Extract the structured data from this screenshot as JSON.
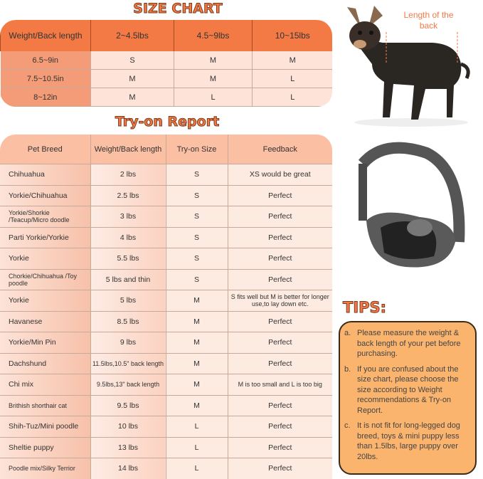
{
  "size_chart": {
    "title": "SIZE CHART",
    "header": [
      "Weight/Back length",
      "2~4.5lbs",
      "4.5~9lbs",
      "10~15lbs"
    ],
    "rows": [
      [
        "6.5~9in",
        "S",
        "M",
        "M"
      ],
      [
        "7.5~10.5in",
        "M",
        "M",
        "L"
      ],
      [
        "8~12in",
        "M",
        "L",
        "L"
      ]
    ]
  },
  "tryon": {
    "title": "Try-on Report",
    "header": [
      "Pet Breed",
      "Weight/Back length",
      "Try-on Size",
      "Feedback"
    ],
    "rows": [
      [
        "Chihuahua",
        "2 lbs",
        "S",
        "XS would be great"
      ],
      [
        "Yorkie/Chihuahua",
        "2.5 lbs",
        "S",
        "Perfect"
      ],
      [
        "Yorkie/Shorkie /Teacup/Micro doodle",
        "3 lbs",
        "S",
        "Perfect"
      ],
      [
        "Parti Yorkie/Yorkie",
        "4 lbs",
        "S",
        "Perfect"
      ],
      [
        "Yorkie",
        "5.5 lbs",
        "S",
        "Perfect"
      ],
      [
        "Chorkie/Chihuahua /Toy poodle",
        "5 lbs and thin",
        "S",
        "Perfect"
      ],
      [
        "Yorkie",
        "5 lbs",
        "M",
        "S fits well but M is better for longer use,to lay down etc."
      ],
      [
        "Havanese",
        "8.5 lbs",
        "M",
        "Perfect"
      ],
      [
        "Yorkie/Min Pin",
        "9 lbs",
        "M",
        "Perfect"
      ],
      [
        "Dachshund",
        "11.5lbs,10.5\" back length",
        "M",
        "Perfect"
      ],
      [
        "Chi mix",
        "9.5lbs,13\" back length",
        "M",
        "M is too small and L is too big"
      ],
      [
        "Brithish shorthair cat",
        "9.5 lbs",
        "M",
        "Perfect"
      ],
      [
        "Shih-Tuz/Mini poodle",
        "10 lbs",
        "L",
        "Perfect"
      ],
      [
        "Sheltie puppy",
        "13 lbs",
        "L",
        "Perfect"
      ],
      [
        "Poodle mix/Silky Terrior",
        "14 lbs",
        "L",
        "Perfect"
      ]
    ]
  },
  "dog_annotation": "Length of the back",
  "tips": {
    "title": "TIPS:",
    "items": [
      {
        "marker": "a.",
        "text": "Please measure the weight & back length of your pet before purchasing."
      },
      {
        "marker": "b.",
        "text": "If you are confused about the size chart, please choose the size according to Weight recommendations & Try-on Report."
      },
      {
        "marker": "c.",
        "text": "It is not fit for long-legged dog breed, toys & mini puppy less than 1.5lbs, large puppy over 20lbs."
      }
    ]
  },
  "colors": {
    "accent": "#f47a45",
    "tips_bg": "#fbb46e"
  }
}
